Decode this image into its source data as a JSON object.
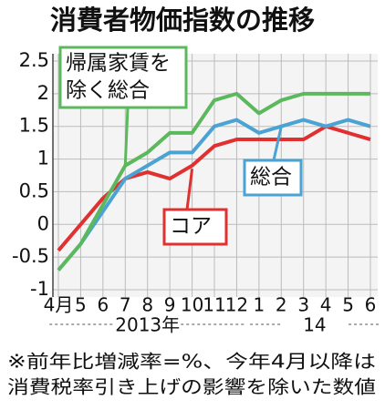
{
  "chart_data": {
    "type": "line",
    "title": "消費者物価指数の推移",
    "categories": [
      "4月",
      "5",
      "6",
      "7",
      "8",
      "9",
      "10",
      "11",
      "12",
      "1",
      "2",
      "3",
      "4",
      "5",
      "6"
    ],
    "groups": [
      {
        "label": "2013年",
        "count": 9
      },
      {
        "label": "14",
        "count": 6
      }
    ],
    "series": [
      {
        "name": [
          "帰属家賃を",
          "除く総合"
        ],
        "color": "#5cb85c",
        "values": [
          -0.7,
          -0.3,
          0.3,
          0.9,
          1.1,
          1.4,
          1.4,
          1.9,
          2.0,
          1.7,
          1.9,
          2.0,
          2.0,
          2.0,
          2.0
        ]
      },
      {
        "name": [
          "総合"
        ],
        "color": "#4aa3d3",
        "values": [
          -0.7,
          -0.3,
          0.2,
          0.7,
          0.9,
          1.1,
          1.1,
          1.5,
          1.6,
          1.4,
          1.5,
          1.6,
          1.5,
          1.6,
          1.5
        ]
      },
      {
        "name": [
          "コア"
        ],
        "color": "#e03030",
        "values": [
          -0.4,
          0.0,
          0.4,
          0.7,
          0.8,
          0.7,
          0.9,
          1.2,
          1.3,
          1.3,
          1.3,
          1.3,
          1.5,
          1.4,
          1.3
        ]
      }
    ],
    "ylim": [
      -1,
      2.5
    ],
    "yticks": [
      -1,
      -0.5,
      0,
      0.5,
      1,
      1.5,
      2,
      2.5
    ],
    "grid": true,
    "footnote": [
      "※前年比増減率=%、今年4月以降は",
      "消費税率引き上げの影響を除いた数値"
    ]
  }
}
